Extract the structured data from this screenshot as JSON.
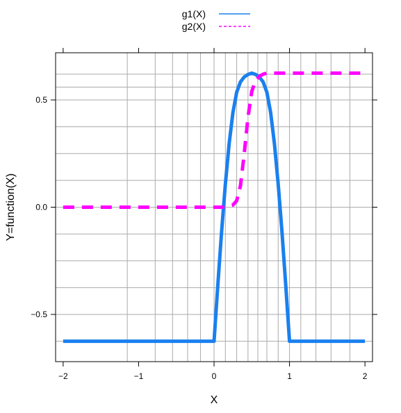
{
  "chart_data": {
    "type": "line",
    "xlabel": "X",
    "ylabel": "Y=function(X)",
    "xlim": [
      -2.1,
      2.1
    ],
    "ylim": [
      -0.72,
      0.72
    ],
    "x_ticks": [
      -2,
      -1,
      0,
      1,
      2
    ],
    "x_tick_labels": [
      "−2",
      "−1",
      "0",
      "1",
      "2"
    ],
    "y_ticks": [
      -0.5,
      0,
      0.5
    ],
    "y_tick_labels": [
      "−0.5",
      "0.0",
      "0.5"
    ],
    "vertical_grid_x": [
      -1.15,
      -0.78,
      -0.55,
      -0.35,
      -0.18,
      0.0,
      0.15,
      0.3,
      0.45,
      0.58,
      0.7,
      0.85,
      1.0,
      1.15,
      1.35,
      1.55,
      1.8
    ],
    "horizontal_grid_y": [
      0.62,
      0.56,
      0.5,
      0.375,
      0.25,
      0.125,
      0.0,
      -0.125,
      -0.25,
      -0.375,
      -0.5,
      -0.625
    ],
    "legend_position": "top",
    "colors": {
      "g1": "#1a80ee",
      "g2": "#ff00ff",
      "grid": "#aaaaaa"
    },
    "series": [
      {
        "name": "g1(X)",
        "style": "solid",
        "x": [
          -2,
          0,
          0.05,
          0.1,
          0.15,
          0.2,
          0.25,
          0.3,
          0.35,
          0.4,
          0.45,
          0.5,
          0.55,
          0.6,
          0.65,
          0.7,
          0.75,
          0.8,
          0.85,
          0.9,
          0.95,
          1.0,
          1.0,
          2
        ],
        "y": [
          -0.625,
          -0.625,
          -0.363,
          -0.114,
          0.108,
          0.296,
          0.441,
          0.536,
          0.584,
          0.607,
          0.619,
          0.625,
          0.619,
          0.607,
          0.584,
          0.536,
          0.441,
          0.296,
          0.108,
          -0.114,
          -0.363,
          -0.625,
          -0.625,
          -0.625
        ]
      },
      {
        "name": "g2(X)",
        "style": "dashed",
        "x": [
          -2,
          0,
          0.1,
          0.2,
          0.25,
          0.3,
          0.35,
          0.4,
          0.45,
          0.5,
          0.55,
          0.6,
          0.65,
          0.7,
          1.0,
          2
        ],
        "y": [
          0,
          0,
          0,
          0.005,
          0.01,
          0.03,
          0.1,
          0.25,
          0.42,
          0.54,
          0.59,
          0.61,
          0.62,
          0.625,
          0.625,
          0.625
        ]
      }
    ]
  }
}
